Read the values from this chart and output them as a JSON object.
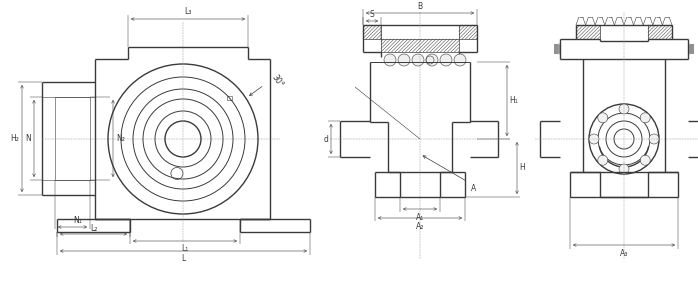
{
  "bg_color": "#ffffff",
  "line_color": "#3a3a3a",
  "dim_color": "#3a3a3a",
  "thin_lw": 0.4,
  "medium_lw": 0.7,
  "thick_lw": 1.0,
  "labels": {
    "L3": "L₃",
    "L2": "L₂",
    "L1": "L₁",
    "L": "L",
    "H2": "H₂",
    "H1": "H₁",
    "H": "H",
    "N": "N",
    "N1": "N₁",
    "N2": "N₂",
    "B": "B",
    "S": "S",
    "A": "A",
    "A1": "A₁",
    "A2": "A₂",
    "A3": "A₃",
    "d": "d",
    "angle": "30°"
  }
}
